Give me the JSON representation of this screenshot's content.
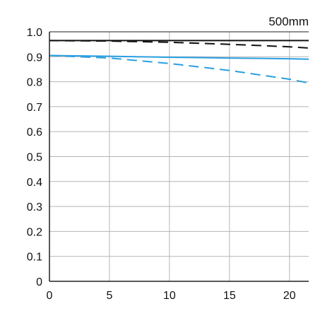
{
  "chart_data": {
    "type": "line",
    "annotation": "500mm",
    "xlim": [
      0,
      21.6
    ],
    "ylim": [
      0,
      1.0
    ],
    "x_ticks": [
      0,
      5,
      10,
      15,
      20
    ],
    "x_tick_labels": [
      "0",
      "5",
      "10",
      "15",
      "20"
    ],
    "y_ticks": [
      0,
      0.1,
      0.2,
      0.3,
      0.4,
      0.5,
      0.6,
      0.7,
      0.8,
      0.9,
      1.0
    ],
    "y_tick_labels": [
      "0",
      "0.1",
      "0.2",
      "0.3",
      "0.4",
      "0.5",
      "0.6",
      "0.7",
      "0.8",
      "0.9",
      "1.0"
    ],
    "grid": true,
    "series": [
      {
        "color": "#111111",
        "dash": false,
        "x": [
          0,
          5,
          10,
          15,
          20,
          21.6
        ],
        "y": [
          0.965,
          0.965,
          0.965,
          0.965,
          0.965,
          0.965
        ]
      },
      {
        "color": "#111111",
        "dash": true,
        "x": [
          0,
          5,
          10,
          15,
          20,
          21.6
        ],
        "y": [
          0.965,
          0.963,
          0.958,
          0.95,
          0.94,
          0.935
        ]
      },
      {
        "color": "#2a9fe0",
        "dash": false,
        "x": [
          0,
          5,
          10,
          15,
          20,
          21.6
        ],
        "y": [
          0.905,
          0.902,
          0.898,
          0.895,
          0.892,
          0.89
        ]
      },
      {
        "color": "#2a9fe0",
        "dash": true,
        "x": [
          0,
          5,
          10,
          15,
          20,
          21.6
        ],
        "y": [
          0.905,
          0.895,
          0.873,
          0.845,
          0.81,
          0.795
        ]
      }
    ]
  }
}
